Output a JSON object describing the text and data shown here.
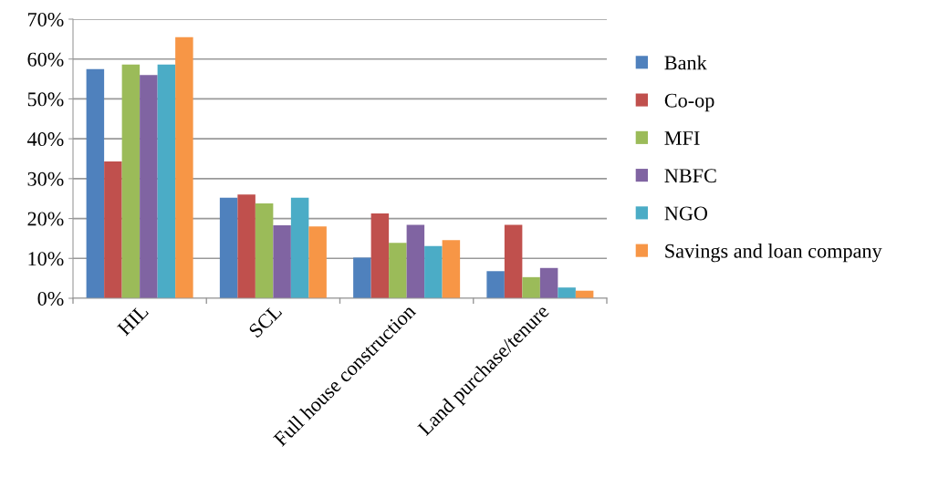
{
  "chart_data": {
    "type": "bar",
    "categories": [
      "HIL",
      "SCL",
      "Full house construction",
      "Land purchase/tenure"
    ],
    "series": [
      {
        "name": "Bank",
        "color": "#4f81bd",
        "values": [
          57.5,
          25.2,
          10.2,
          6.8
        ]
      },
      {
        "name": "Co-op",
        "color": "#c0504d",
        "values": [
          34.3,
          26.0,
          21.3,
          18.4
        ]
      },
      {
        "name": "MFI",
        "color": "#9bbb59",
        "values": [
          58.6,
          23.8,
          13.9,
          5.3
        ]
      },
      {
        "name": "NBFC",
        "color": "#8064a2",
        "values": [
          56.0,
          18.3,
          18.4,
          7.6
        ]
      },
      {
        "name": "NGO",
        "color": "#4bacc6",
        "values": [
          58.6,
          25.2,
          13.1,
          2.7
        ]
      },
      {
        "name": "Savings and loan company",
        "color": "#f79646",
        "values": [
          65.5,
          18.0,
          14.6,
          1.9
        ]
      }
    ],
    "ylim": [
      0,
      70
    ],
    "yticks": [
      {
        "value": 0,
        "label": "0%"
      },
      {
        "value": 10,
        "label": "10%"
      },
      {
        "value": 20,
        "label": "20%"
      },
      {
        "value": 30,
        "label": "30%"
      },
      {
        "value": 40,
        "label": "40%"
      },
      {
        "value": 50,
        "label": "50%"
      },
      {
        "value": 60,
        "label": "60%"
      },
      {
        "value": 70,
        "label": "70%"
      }
    ],
    "grid": "y",
    "legend": "right"
  }
}
